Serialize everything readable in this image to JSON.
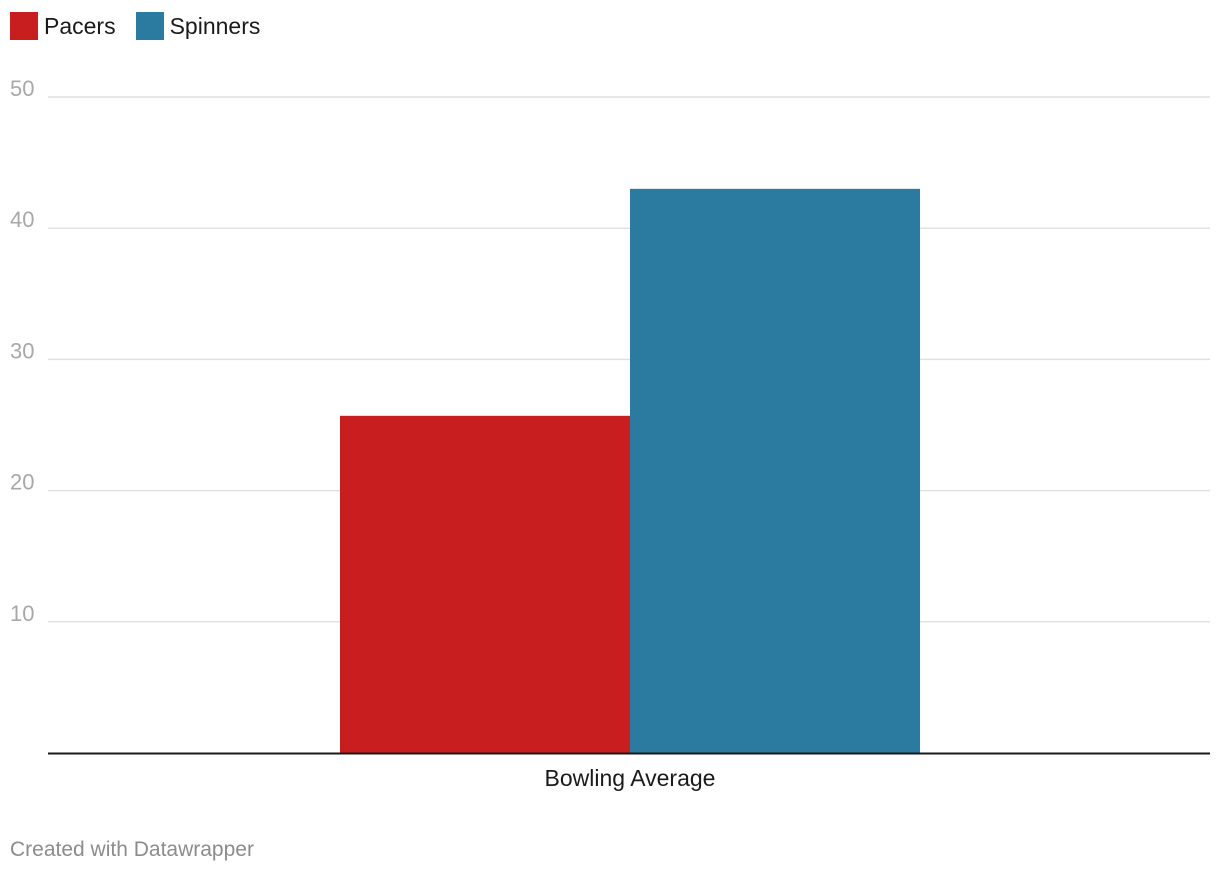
{
  "chart_data": {
    "type": "bar",
    "categories": [
      "Bowling Average"
    ],
    "series": [
      {
        "name": "Pacers",
        "values": [
          25.7
        ],
        "color": "#c91e1f"
      },
      {
        "name": "Spinners",
        "values": [
          43.0
        ],
        "color": "#2b7ba0"
      }
    ],
    "title": "",
    "xlabel": "",
    "ylabel": "",
    "ylim": [
      0,
      50
    ],
    "yticks": [
      "10",
      "20",
      "30",
      "40",
      "50"
    ],
    "grid": true,
    "legend_position": "top-left"
  },
  "footer": {
    "credit": "Created with Datawrapper"
  },
  "colors": {
    "grid": "#e1e1e1",
    "axis": "#1a1a1a",
    "tick_label": "#a8a8a8",
    "category_label": "#1a1a1a"
  }
}
